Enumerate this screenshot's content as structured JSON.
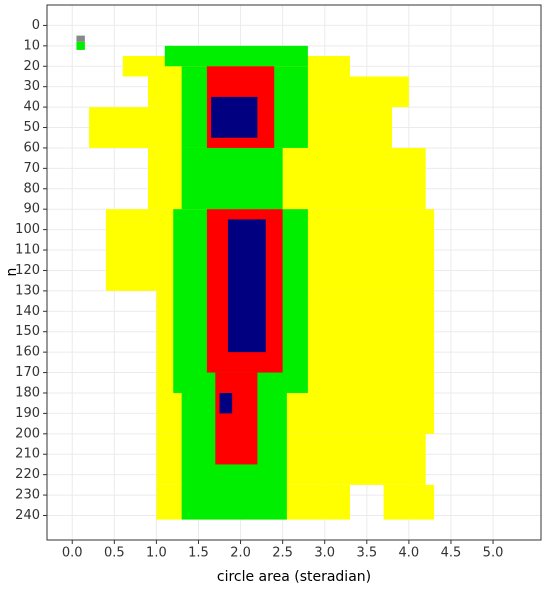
{
  "chart_data": {
    "type": "heatmap",
    "x_label": "circle area (steradian)",
    "y_label": "n",
    "xlim": [
      -0.3,
      5.57
    ],
    "ylim": [
      -10,
      252
    ],
    "y_reversed": true,
    "grid": true,
    "xticks": [
      {
        "value": 0,
        "label": "0.0"
      },
      0.5,
      {
        "value": 1,
        "label": "1.0"
      },
      1.5,
      {
        "value": 2,
        "label": "2.0"
      },
      2.5,
      {
        "value": 3,
        "label": "3.0"
      },
      3.5,
      {
        "value": 4,
        "label": "4.0"
      },
      4.5,
      {
        "value": 5,
        "label": "5.0"
      }
    ],
    "yticks": [
      0,
      10,
      20,
      30,
      40,
      50,
      60,
      70,
      80,
      90,
      100,
      110,
      120,
      130,
      140,
      150,
      160,
      170,
      180,
      190,
      200,
      210,
      220,
      230,
      240
    ],
    "series": [
      {
        "color": "#ffff00",
        "cells": [
          [
            0.6,
            3.3,
            15,
            25
          ],
          [
            0.9,
            4.0,
            25,
            40
          ],
          [
            0.2,
            3.8,
            40,
            60
          ],
          [
            0.9,
            4.2,
            60,
            90
          ],
          [
            0.4,
            4.3,
            90,
            130
          ],
          [
            1.0,
            4.3,
            130,
            200
          ],
          [
            1.0,
            4.2,
            200,
            225
          ],
          [
            1.0,
            3.3,
            225,
            242
          ],
          [
            3.7,
            4.3,
            225,
            242
          ]
        ]
      },
      {
        "color": "#00ee00",
        "cells": [
          [
            1.1,
            2.8,
            10,
            20
          ],
          [
            1.3,
            2.8,
            20,
            60
          ],
          [
            1.3,
            2.5,
            60,
            90
          ],
          [
            1.2,
            2.8,
            90,
            180
          ],
          [
            1.3,
            2.55,
            180,
            242
          ],
          [
            0.05,
            0.15,
            8,
            12
          ]
        ]
      },
      {
        "color": "#ff0000",
        "cells": [
          [
            1.6,
            2.4,
            20,
            60
          ],
          [
            1.6,
            2.5,
            90,
            170
          ],
          [
            1.7,
            2.2,
            170,
            215
          ]
        ]
      },
      {
        "color": "#000080",
        "cells": [
          [
            1.65,
            2.2,
            35,
            55
          ],
          [
            1.85,
            2.3,
            95,
            160
          ],
          [
            1.75,
            1.9,
            180,
            190
          ]
        ]
      },
      {
        "color": "#888888",
        "cells": [
          [
            0.05,
            0.15,
            5,
            8
          ]
        ]
      }
    ]
  }
}
